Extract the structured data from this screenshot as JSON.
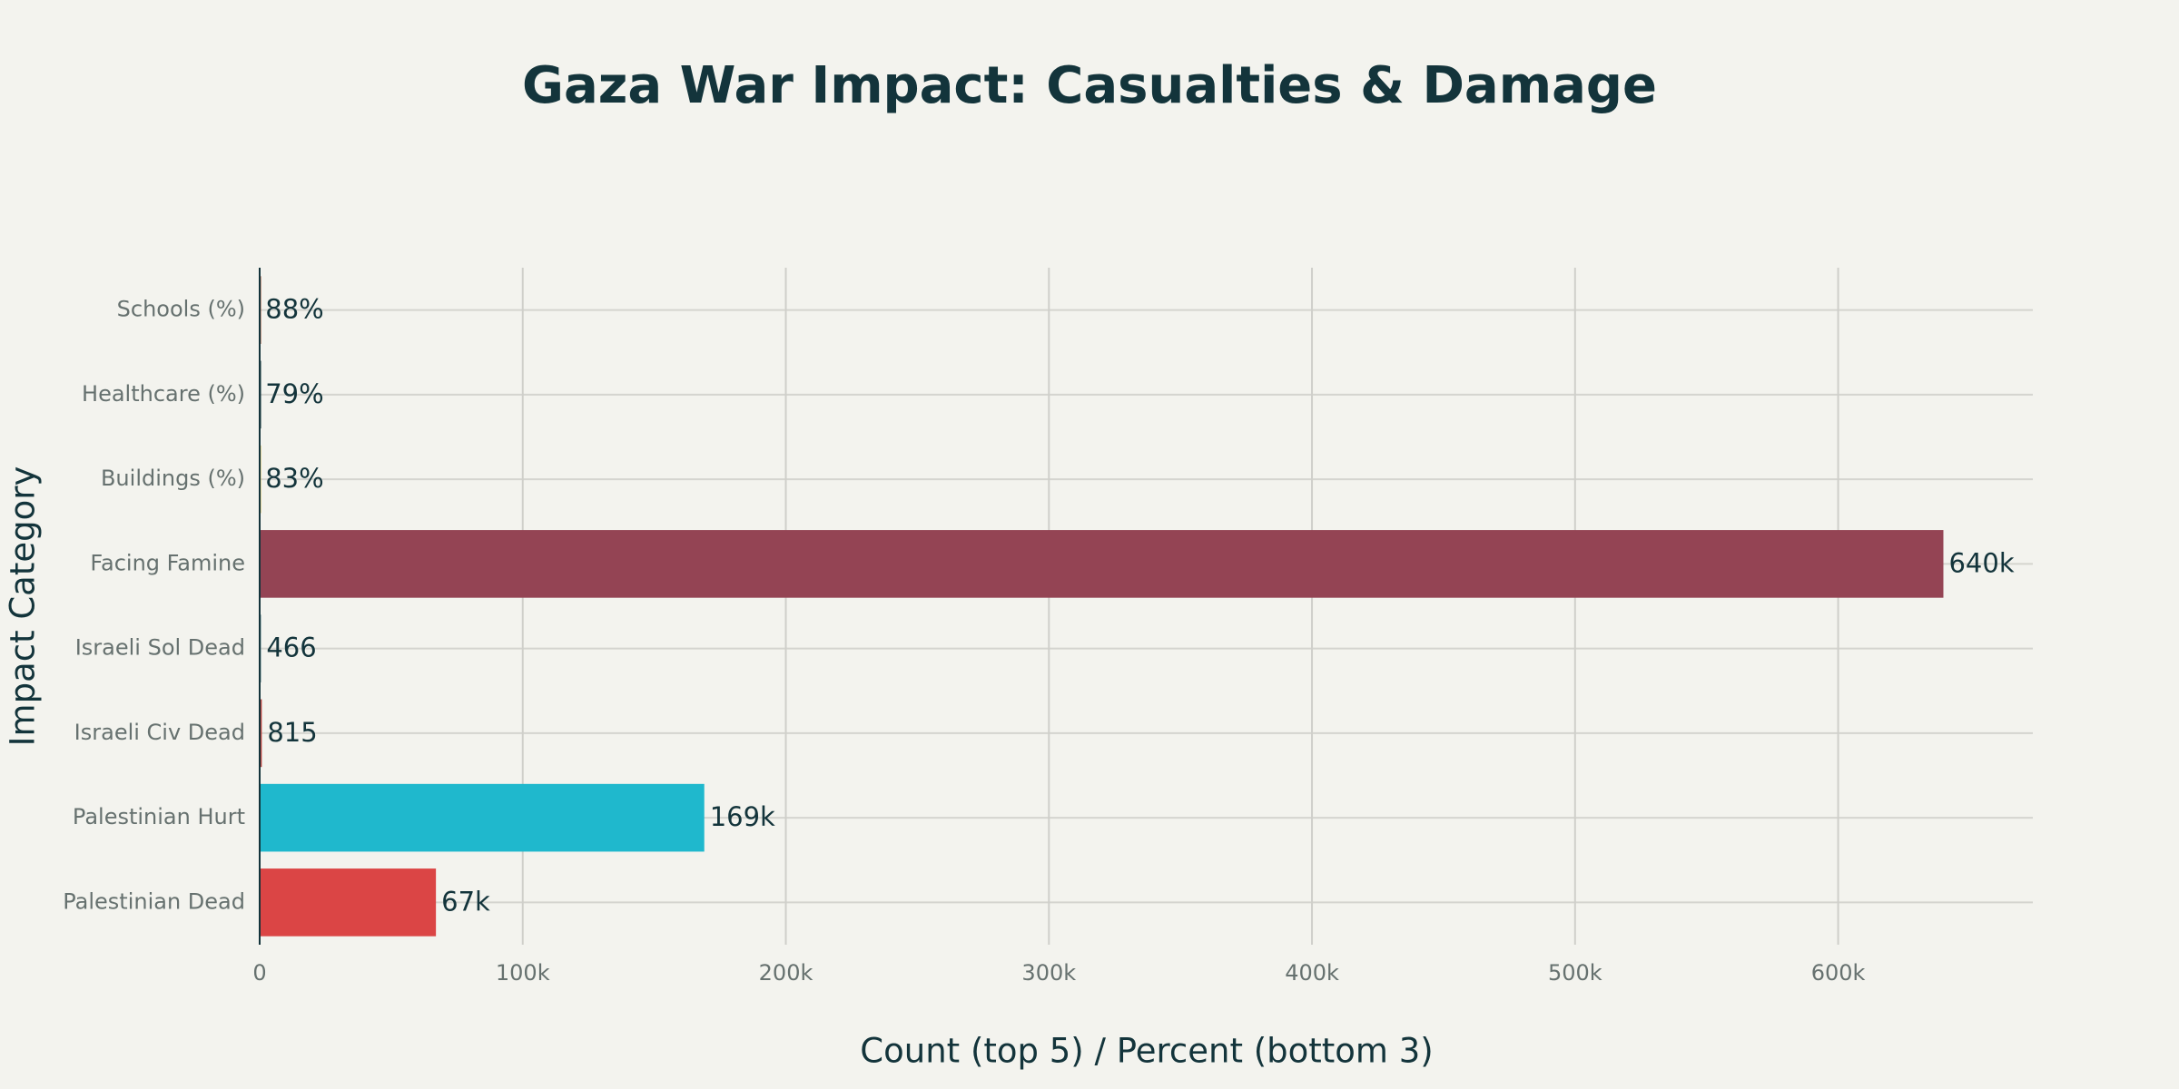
{
  "chart_data": {
    "type": "bar",
    "orientation": "horizontal",
    "title": "Gaza War Impact: Casualties & Damage",
    "x_label": "Count (top 5) / Percent (bottom 3)",
    "y_label": "Impact Category",
    "categories": [
      "Palestinian Dead",
      "Palestinian Hurt",
      "Israeli Civ Dead",
      "Israeli Sol Dead",
      "Facing Famine",
      "Buildings (%)",
      "Healthcare (%)",
      "Schools (%)"
    ],
    "values": [
      67000,
      169000,
      815,
      466,
      640000,
      83,
      79,
      88
    ],
    "value_labels": [
      "67k",
      "169k",
      "815",
      "466",
      "640k",
      "83%",
      "79%",
      "88%"
    ],
    "colors": [
      "#db4545",
      "#1fb8cd",
      "#b4413c",
      "#5d878f",
      "#944454",
      "#d2ba4c",
      "#13343b",
      "#964325"
    ],
    "xlim": [
      0,
      674000
    ],
    "xticks": [
      0,
      {
        "value": 100000,
        "label": "100k"
      },
      {
        "value": 200000,
        "label": "200k"
      },
      {
        "value": 300000,
        "label": "300k"
      },
      {
        "value": 400000,
        "label": "400k"
      },
      {
        "value": 500000,
        "label": "500k"
      },
      {
        "value": 600000,
        "label": "600k"
      }
    ],
    "grid": true
  }
}
